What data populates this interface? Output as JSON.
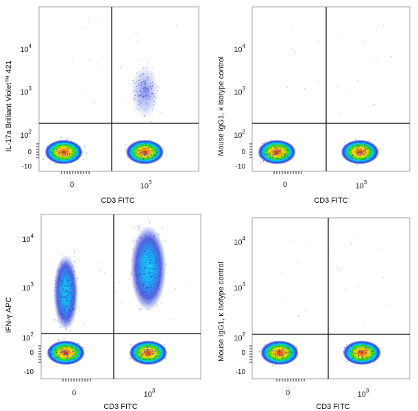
{
  "colors": {
    "background": "#ffffff",
    "frame": "#888888",
    "gate": "#000000",
    "density_low": "#1a2fd6",
    "density_mid_low": "#00c8ff",
    "density_mid": "#38e000",
    "density_mid_high": "#ffe100",
    "density_high": "#ff2a00"
  },
  "chart_data": [
    {
      "type": "scatter",
      "title": "",
      "xlabel": "CD3 FITC",
      "ylabel": "IL-17a Brilliant Violet™ 421",
      "x_scale": "biexponential",
      "y_scale": "biexponential",
      "x_ticks": [
        {
          "value": 0,
          "label": "0"
        },
        {
          "base": "10",
          "exp": "3",
          "value": 1000
        }
      ],
      "y_ticks": [
        {
          "label": "-10",
          "value": -10
        },
        {
          "label": "0",
          "value": 0
        },
        {
          "base": "10",
          "exp": "2",
          "value": 100
        },
        {
          "base": "10",
          "exp": "3",
          "value": 1000
        },
        {
          "base": "10",
          "exp": "4",
          "value": 10000
        }
      ],
      "quadrant_gate": {
        "x": 200,
        "y": 150
      },
      "populations": [
        {
          "x_center": -30,
          "y_center": 0,
          "density": "high"
        },
        {
          "x_center": 900,
          "y_center": 0,
          "density": "high"
        },
        {
          "x_center": 900,
          "y_center": 1000,
          "density": "low"
        }
      ]
    },
    {
      "type": "scatter",
      "title": "",
      "xlabel": "CD3 FITC",
      "ylabel": "Mouse IgG1, κ isotype control",
      "x_scale": "biexponential",
      "y_scale": "biexponential",
      "x_ticks": [
        {
          "value": 0,
          "label": "0"
        },
        {
          "base": "10",
          "exp": "3",
          "value": 1000
        }
      ],
      "y_ticks": [
        {
          "label": "-10",
          "value": -10
        },
        {
          "label": "0",
          "value": 0
        },
        {
          "base": "10",
          "exp": "2",
          "value": 100
        },
        {
          "base": "10",
          "exp": "3",
          "value": 1000
        },
        {
          "base": "10",
          "exp": "4",
          "value": 10000
        }
      ],
      "quadrant_gate": {
        "x": 200,
        "y": 150
      },
      "populations": [
        {
          "x_center": -30,
          "y_center": 0,
          "density": "high"
        },
        {
          "x_center": 900,
          "y_center": 0,
          "density": "high"
        }
      ]
    },
    {
      "type": "scatter",
      "title": "",
      "xlabel": "CD3 FITC",
      "ylabel": "IFN-γ APC",
      "x_scale": "biexponential",
      "y_scale": "biexponential",
      "x_ticks": [
        {
          "value": 0,
          "label": "0"
        },
        {
          "base": "10",
          "exp": "3",
          "value": 1000
        }
      ],
      "y_ticks": [
        {
          "label": "-10",
          "value": -10
        },
        {
          "label": "0",
          "value": 0
        },
        {
          "base": "10",
          "exp": "2",
          "value": 100
        },
        {
          "base": "10",
          "exp": "3",
          "value": 1000
        },
        {
          "base": "10",
          "exp": "4",
          "value": 10000
        }
      ],
      "quadrant_gate": {
        "x": 200,
        "y": 150
      },
      "populations": [
        {
          "x_center": -30,
          "y_center": 0,
          "density": "high"
        },
        {
          "x_center": 900,
          "y_center": 0,
          "density": "high"
        },
        {
          "x_center": -30,
          "y_center": 800,
          "density": "medium"
        },
        {
          "x_center": 900,
          "y_center": 2500,
          "density": "medium"
        }
      ]
    },
    {
      "type": "scatter",
      "title": "",
      "xlabel": "CD3 FITC",
      "ylabel": "Mouse IgG1, κ isotype control",
      "x_scale": "biexponential",
      "y_scale": "biexponential",
      "x_ticks": [
        {
          "value": 0,
          "label": "0"
        },
        {
          "base": "10",
          "exp": "3",
          "value": 1000
        }
      ],
      "y_ticks": [
        {
          "label": "-10",
          "value": -10
        },
        {
          "label": "0",
          "value": 0
        },
        {
          "base": "10",
          "exp": "2",
          "value": 100
        },
        {
          "base": "10",
          "exp": "3",
          "value": 1000
        },
        {
          "base": "10",
          "exp": "4",
          "value": 10000
        }
      ],
      "quadrant_gate": {
        "x": 200,
        "y": 150
      },
      "populations": [
        {
          "x_center": -30,
          "y_center": 0,
          "density": "high"
        },
        {
          "x_center": 900,
          "y_center": 0,
          "density": "high"
        }
      ]
    }
  ]
}
